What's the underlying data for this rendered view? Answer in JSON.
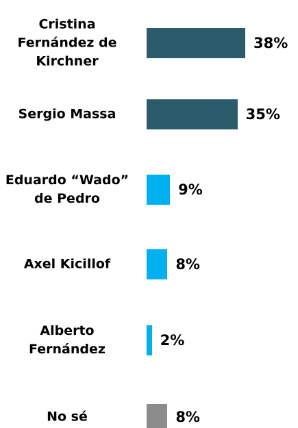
{
  "chart_data": {
    "type": "bar",
    "orientation": "horizontal",
    "categories": [
      "Cristina Fernández de Kirchner",
      "Sergio Massa",
      "Eduardo “Wado” de Pedro",
      "Axel Kicillof",
      "Alberto Fernández",
      "No sé"
    ],
    "values": [
      38,
      35,
      9,
      8,
      2,
      8
    ],
    "value_labels": [
      "38%",
      "35%",
      "9%",
      "8%",
      "2%",
      "8%"
    ],
    "colors": [
      "#2a5c6c",
      "#2a5c6c",
      "#00b0f0",
      "#00b0f0",
      "#00b0f0",
      "#8c8c8c"
    ]
  }
}
